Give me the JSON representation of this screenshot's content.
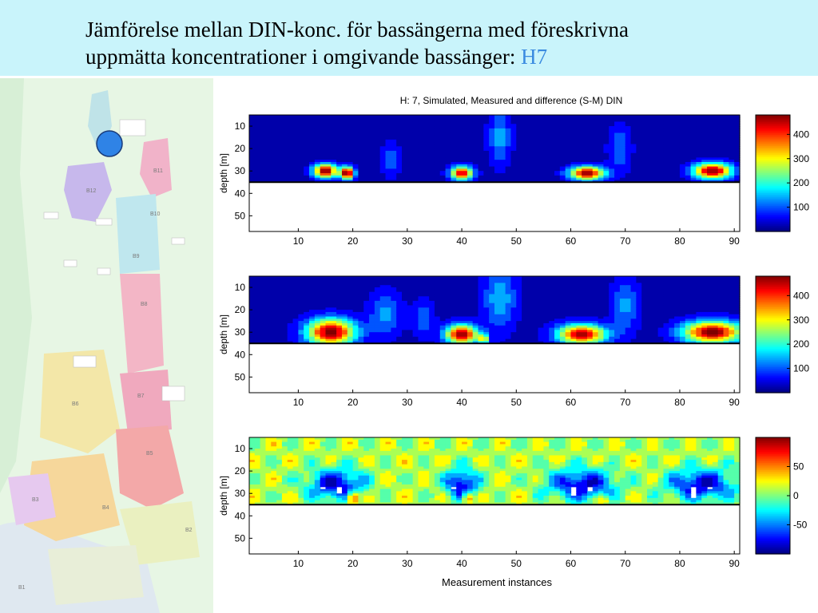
{
  "slide": {
    "title_line1": "Jämförelse mellan DIN-konc. för bassängerna med föreskrivna",
    "title_line2": "uppmätta koncentrationer i omgivande bassänger:",
    "title_highlight": "H7",
    "title_color": "#000000",
    "highlight_color": "#3a8be0",
    "header_bg": "#c9f4fb"
  },
  "map": {
    "marker_color": "#2f83e6",
    "basin_labels": [
      "B1",
      "B2",
      "B3",
      "B4",
      "B5",
      "B6",
      "B7",
      "B8",
      "B9",
      "B10",
      "B11",
      "B12"
    ]
  },
  "chart_data": [
    {
      "type": "heatmap",
      "title": "H: 7, Simulated, Measured and difference (S-M) DIN",
      "xlabel": "",
      "ylabel": "depth [m]",
      "xlim": [
        1,
        91
      ],
      "ylim": [
        5,
        57
      ],
      "y_reversed": true,
      "xticks": [
        10,
        20,
        30,
        40,
        50,
        60,
        70,
        80,
        90
      ],
      "yticks": [
        10,
        20,
        30,
        40,
        50
      ],
      "colorbar": {
        "ticks": [
          100,
          200,
          300,
          400
        ],
        "range": [
          0,
          480
        ],
        "colormap": "jet"
      },
      "bottom_depth": 35,
      "background_level": 20,
      "hotspots": [
        {
          "x": 15,
          "z": 30,
          "amp": 470,
          "sx": 2.2,
          "sz": 3
        },
        {
          "x": 19,
          "z": 31,
          "amp": 470,
          "sx": 1.3,
          "sz": 2.8
        },
        {
          "x": 40,
          "z": 31,
          "amp": 450,
          "sx": 2,
          "sz": 3
        },
        {
          "x": 63,
          "z": 31,
          "amp": 460,
          "sx": 3.2,
          "sz": 3
        },
        {
          "x": 86,
          "z": 30,
          "amp": 470,
          "sx": 3.5,
          "sz": 3.5
        }
      ],
      "plumes": [
        {
          "x": 47,
          "z": 15,
          "amp": 120,
          "sx": 2,
          "sz": 12
        },
        {
          "x": 69,
          "z": 20,
          "amp": 100,
          "sx": 2,
          "sz": 10
        },
        {
          "x": 27,
          "z": 25,
          "amp": 90,
          "sx": 1.5,
          "sz": 8
        }
      ]
    },
    {
      "type": "heatmap",
      "title": "",
      "xlabel": "",
      "ylabel": "depth [m]",
      "xlim": [
        1,
        91
      ],
      "ylim": [
        5,
        57
      ],
      "y_reversed": true,
      "xticks": [
        10,
        20,
        30,
        40,
        50,
        60,
        70,
        80,
        90
      ],
      "yticks": [
        10,
        20,
        30,
        40,
        50
      ],
      "colorbar": {
        "ticks": [
          100,
          200,
          300,
          400
        ],
        "range": [
          0,
          480
        ],
        "colormap": "jet"
      },
      "bottom_depth": 35,
      "background_level": 20,
      "hotspots": [
        {
          "x": 16,
          "z": 30,
          "amp": 470,
          "sx": 4.5,
          "sz": 6
        },
        {
          "x": 40,
          "z": 31,
          "amp": 450,
          "sx": 3,
          "sz": 4.5
        },
        {
          "x": 44,
          "z": 33,
          "amp": 250,
          "sx": 1,
          "sz": 2
        },
        {
          "x": 62,
          "z": 31,
          "amp": 450,
          "sx": 4.5,
          "sz": 4.5
        },
        {
          "x": 86,
          "z": 30,
          "amp": 470,
          "sx": 5.5,
          "sz": 5
        }
      ],
      "plumes": [
        {
          "x": 47,
          "z": 15,
          "amp": 130,
          "sx": 3,
          "sz": 14
        },
        {
          "x": 70,
          "z": 18,
          "amp": 110,
          "sx": 2.5,
          "sz": 12
        },
        {
          "x": 26,
          "z": 22,
          "amp": 110,
          "sx": 3,
          "sz": 10
        },
        {
          "x": 33,
          "z": 24,
          "amp": 90,
          "sx": 2,
          "sz": 8
        }
      ]
    },
    {
      "type": "heatmap",
      "title": "",
      "xlabel": "Measurement instances",
      "ylabel": "depth [m]",
      "xlim": [
        1,
        91
      ],
      "ylim": [
        5,
        57
      ],
      "y_reversed": true,
      "xticks": [
        10,
        20,
        30,
        40,
        50,
        60,
        70,
        80,
        90
      ],
      "yticks": [
        10,
        20,
        30,
        40,
        50
      ],
      "colorbar": {
        "ticks": [
          -50,
          0,
          50
        ],
        "range": [
          -100,
          100
        ],
        "colormap": "jet"
      },
      "bottom_depth": 35,
      "background_level": 20,
      "hotspots": [
        {
          "x": 20,
          "z": 32,
          "amp": 95,
          "sx": 1,
          "sz": 3
        },
        {
          "x": 41,
          "z": 32,
          "amp": 95,
          "sx": 0.8,
          "sz": 3
        },
        {
          "x": 66,
          "z": 33,
          "amp": 40,
          "sx": 1,
          "sz": 2
        }
      ],
      "plumes": [
        {
          "x": 17,
          "z": 26,
          "amp": -95,
          "sx": 5,
          "sz": 7
        },
        {
          "x": 40,
          "z": 26,
          "amp": -95,
          "sx": 3,
          "sz": 7
        },
        {
          "x": 62,
          "z": 26,
          "amp": -95,
          "sx": 6,
          "sz": 7
        },
        {
          "x": 84,
          "z": 26,
          "amp": -95,
          "sx": 6,
          "sz": 7
        }
      ]
    }
  ]
}
